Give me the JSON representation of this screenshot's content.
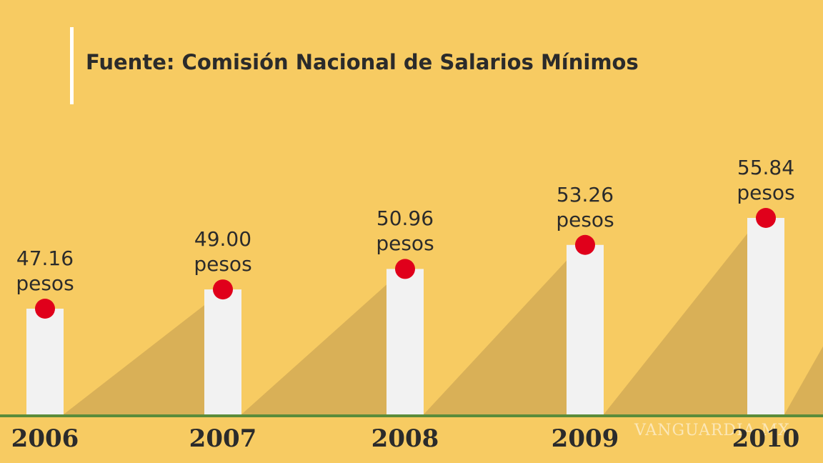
{
  "chart_data": {
    "type": "bar",
    "title": "Fuente: Comisión Nacional de Salarios Mínimos",
    "categories": [
      "2006",
      "2007",
      "2008",
      "2009",
      "2010"
    ],
    "values": [
      47.16,
      49.0,
      50.96,
      53.26,
      55.84
    ],
    "value_labels": [
      "47.16 pesos",
      "49.00 pesos",
      "50.96 pesos",
      "53.26 pesos",
      "55.84 pesos"
    ],
    "color": "#f2f2f2",
    "marker_color": "#e0001b",
    "watermark": "VANGUARDIA MX"
  }
}
